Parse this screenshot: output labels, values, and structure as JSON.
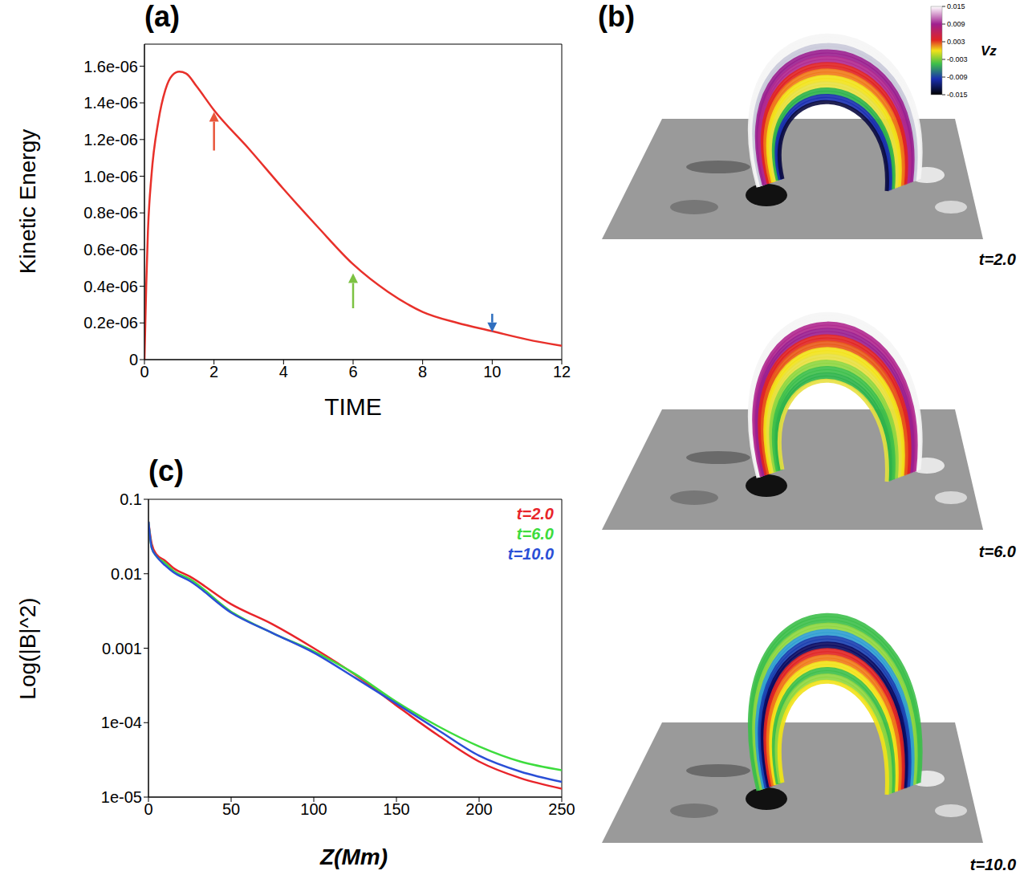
{
  "chart_data": [
    {
      "panel": "(a)",
      "type": "line",
      "x_label": "TIME",
      "y_label": "Kinetic Energy",
      "xlim": [
        0,
        12
      ],
      "xticks": [
        0,
        2,
        4,
        6,
        8,
        10,
        12
      ],
      "ylim": [
        0,
        1.72e-06
      ],
      "yticks": [
        0,
        {
          "value": 2e-07,
          "label": "0.2e-06"
        },
        {
          "value": 4e-07,
          "label": "0.4e-06"
        },
        {
          "value": 6e-07,
          "label": "0.6e-06"
        },
        {
          "value": 8e-07,
          "label": "0.8e-06"
        },
        {
          "value": 1e-06,
          "label": "1.0e-06"
        },
        {
          "value": 1.2e-06,
          "label": "1.2e-06"
        },
        {
          "value": 1.4e-06,
          "label": "1.4e-06"
        },
        {
          "value": 1.6e-06,
          "label": "1.6e-06"
        }
      ],
      "x": [
        0,
        0.05,
        0.1,
        0.2,
        0.4,
        0.6,
        0.8,
        1.0,
        1.2,
        1.5,
        2,
        3,
        4,
        5,
        6,
        7,
        8,
        9,
        10,
        11,
        12
      ],
      "values": [
        0,
        4e-07,
        7e-07,
        1e-06,
        1.3e-06,
        1.47e-06,
        1.55e-06,
        1.57e-06,
        1.56e-06,
        1.49e-06,
        1.36e-06,
        1.15e-06,
        9.3e-07,
        7.2e-07,
        5.2e-07,
        3.7e-07,
        2.6e-07,
        2e-07,
        1.55e-07,
        1.1e-07,
        7.5e-08
      ],
      "color": "#e8302a",
      "arrows": [
        {
          "x": 2,
          "y_from": 1.14e-06,
          "y_to": 1.35e-06,
          "color": "#e8553a"
        },
        {
          "x": 6,
          "y_from": 2.8e-07,
          "y_to": 4.7e-07,
          "color": "#7cc242"
        },
        {
          "x": 10,
          "y_from": 2.5e-07,
          "y_to": 1.5e-07,
          "color": "#2f6fbf"
        }
      ]
    },
    {
      "panel": "(b)",
      "type": "image",
      "images": [
        {
          "label": "t=2.0"
        },
        {
          "label": "t=6.0"
        },
        {
          "label": "t=10.0"
        }
      ],
      "colorbar": {
        "label": "Vz",
        "range": [
          -0.015,
          0.015
        ],
        "ticks": [
          -0.015,
          -0.009,
          -0.003,
          0.003,
          0.009,
          0.015
        ]
      }
    },
    {
      "panel": "(c)",
      "type": "line",
      "log": "y",
      "x_label": "Z(Mm)",
      "y_label": "Log(|B|^2)",
      "xlim": [
        0,
        250
      ],
      "xticks": [
        0,
        50,
        100,
        150,
        200,
        250
      ],
      "ylim": [
        1e-05,
        0.1
      ],
      "yticks": [
        {
          "value": 1e-05,
          "label": "1e-05"
        },
        {
          "value": 0.0001,
          "label": "1e-04"
        },
        0.001,
        0.01,
        0.1
      ],
      "legend": "upper right",
      "x": [
        0,
        2,
        5,
        10,
        15,
        25,
        50,
        75,
        100,
        125,
        150,
        175,
        200,
        225,
        250
      ],
      "series": [
        {
          "name": "t=2.0",
          "color": "#e8242a",
          "values": [
            0.05,
            0.025,
            0.018,
            0.015,
            0.012,
            0.0092,
            0.0039,
            0.0021,
            0.001,
            0.00044,
            0.00017,
            6.8e-05,
            3e-05,
            1.8e-05,
            1.3e-05
          ]
        },
        {
          "name": "t=6.0",
          "color": "#3ddc3d",
          "values": [
            0.05,
            0.022,
            0.017,
            0.014,
            0.011,
            0.0085,
            0.0031,
            0.0016,
            0.00091,
            0.00045,
            0.00019,
            9e-05,
            4.8e-05,
            3e-05,
            2.3e-05
          ]
        },
        {
          "name": "t=10.0",
          "color": "#2a4fd6",
          "values": [
            0.05,
            0.022,
            0.017,
            0.013,
            0.0105,
            0.008,
            0.003,
            0.0016,
            0.00087,
            0.0004,
            0.00018,
            8e-05,
            3.6e-05,
            2.2e-05,
            1.6e-05
          ]
        }
      ]
    }
  ]
}
